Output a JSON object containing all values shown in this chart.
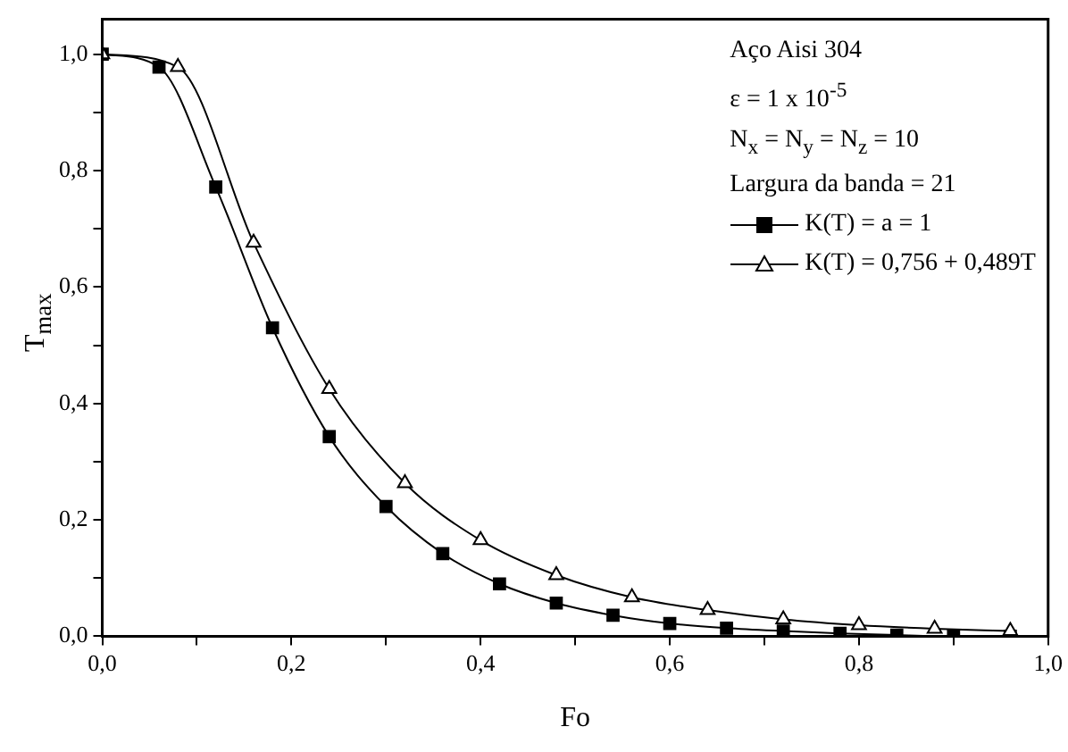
{
  "chart_data": {
    "type": "line",
    "xlabel": "Fo",
    "ylabel": "T$_{max}$",
    "annotations": [
      "Aço Aisi 304",
      "ε = 1 x 10$^{-5}$",
      "N$_{x}$ = N$_{y}$ = N$_{z}$ = 10",
      "Largura da banda = 21"
    ],
    "xlim": [
      0,
      1
    ],
    "ylim": [
      0,
      1.06
    ],
    "xticks": [
      {
        "value": 0,
        "label": "0,0"
      },
      {
        "value": 0.1,
        "label": null
      },
      {
        "value": 0.2,
        "label": "0,2"
      },
      {
        "value": 0.3,
        "label": null
      },
      {
        "value": 0.4,
        "label": "0,4"
      },
      {
        "value": 0.5,
        "label": null
      },
      {
        "value": 0.6,
        "label": "0,6"
      },
      {
        "value": 0.7,
        "label": null
      },
      {
        "value": 0.8,
        "label": "0,8"
      },
      {
        "value": 0.9,
        "label": null
      },
      {
        "value": 1,
        "label": "1,0"
      }
    ],
    "yticks": [
      {
        "value": 0,
        "label": "0,0"
      },
      {
        "value": 0.1,
        "label": null
      },
      {
        "value": 0.2,
        "label": "0,2"
      },
      {
        "value": 0.3,
        "label": null
      },
      {
        "value": 0.4,
        "label": "0,4"
      },
      {
        "value": 0.5,
        "label": null
      },
      {
        "value": 0.6,
        "label": "0,6"
      },
      {
        "value": 0.7,
        "label": null
      },
      {
        "value": 0.8,
        "label": "0,8"
      },
      {
        "value": 0.9,
        "label": null
      },
      {
        "value": 1,
        "label": "1,0"
      }
    ],
    "legend": "top right",
    "grid": false,
    "line_style": "solid",
    "series": [
      {
        "name": "K(T) = a = 1",
        "color": "#000000",
        "marker": "square",
        "x": [
          0,
          0.06,
          0.12,
          0.18,
          0.24,
          0.3,
          0.36,
          0.42,
          0.48,
          0.54,
          0.6,
          0.66,
          0.72,
          0.78,
          0.84,
          0.9,
          0.96
        ],
        "values": [
          1.0,
          0.978,
          0.772,
          0.53,
          0.343,
          0.223,
          0.142,
          0.09,
          0.057,
          0.036,
          0.022,
          0.014,
          0.009,
          0.005,
          0.002,
          0.0,
          0.0
        ]
      },
      {
        "name": "K(T) = 0,756 + 0,489T",
        "color": "#000000",
        "marker": "triangle",
        "x": [
          0,
          0.08,
          0.16,
          0.24,
          0.32,
          0.4,
          0.48,
          0.56,
          0.64,
          0.72,
          0.8,
          0.88,
          0.96
        ],
        "values": [
          1.0,
          0.978,
          0.676,
          0.425,
          0.263,
          0.165,
          0.105,
          0.067,
          0.045,
          0.029,
          0.019,
          0.013,
          0.009
        ]
      }
    ]
  }
}
